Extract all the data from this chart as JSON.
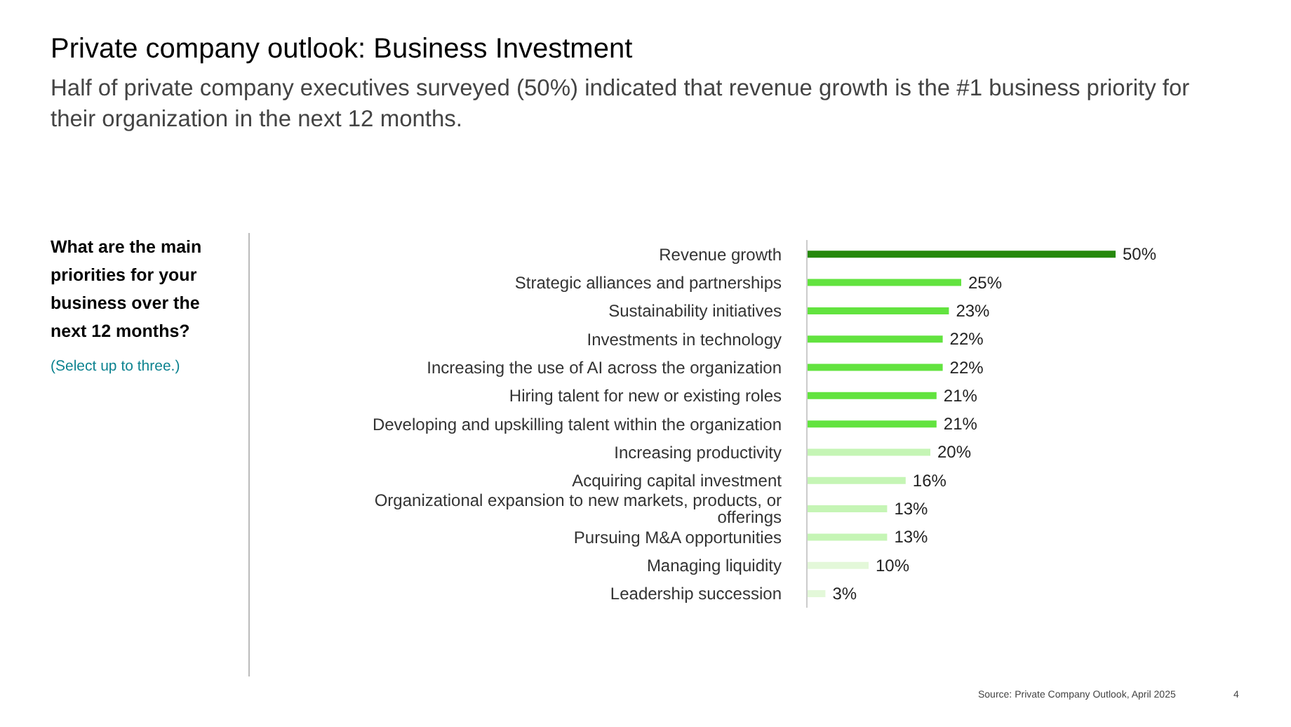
{
  "chart_data": {
    "type": "bar",
    "orientation": "horizontal",
    "title": "Private company outlook: Business Investment",
    "subtitle": "Half of private company executives surveyed (50%) indicated that revenue growth is the #1 business priority for their organization in the next 12 months.",
    "categories": [
      "Revenue growth",
      "Strategic alliances and partnerships",
      "Sustainability initiatives",
      "Investments in technology",
      "Increasing the use of AI across the organization",
      "Hiring talent for new or existing roles",
      "Developing and upskilling talent within the organization",
      "Increasing productivity",
      "Acquiring capital investment",
      "Organizational expansion to new markets, products, or offerings",
      "Pursuing M&A opportunities",
      "Managing liquidity",
      "Leadership succession"
    ],
    "values": [
      50,
      25,
      23,
      22,
      22,
      21,
      21,
      20,
      16,
      13,
      13,
      10,
      3
    ],
    "value_labels": [
      "50%",
      "25%",
      "23%",
      "22%",
      "22%",
      "21%",
      "21%",
      "20%",
      "16%",
      "13%",
      "13%",
      "10%",
      "3%"
    ],
    "colors": [
      "#26890d",
      "#62e33f",
      "#62e33f",
      "#62e33f",
      "#62e33f",
      "#62e33f",
      "#62e33f",
      "#c5f5b5",
      "#c5f5b5",
      "#c5f5b5",
      "#c5f5b5",
      "#e3f8d9",
      "#e3f8d9"
    ],
    "annotations": [
      "What are the main priorities for your business over the next 12 months?",
      "(Select up to three.)",
      "Source: Private Company Outlook, April 2025",
      "4"
    ],
    "grid": false,
    "legend": false
  }
}
